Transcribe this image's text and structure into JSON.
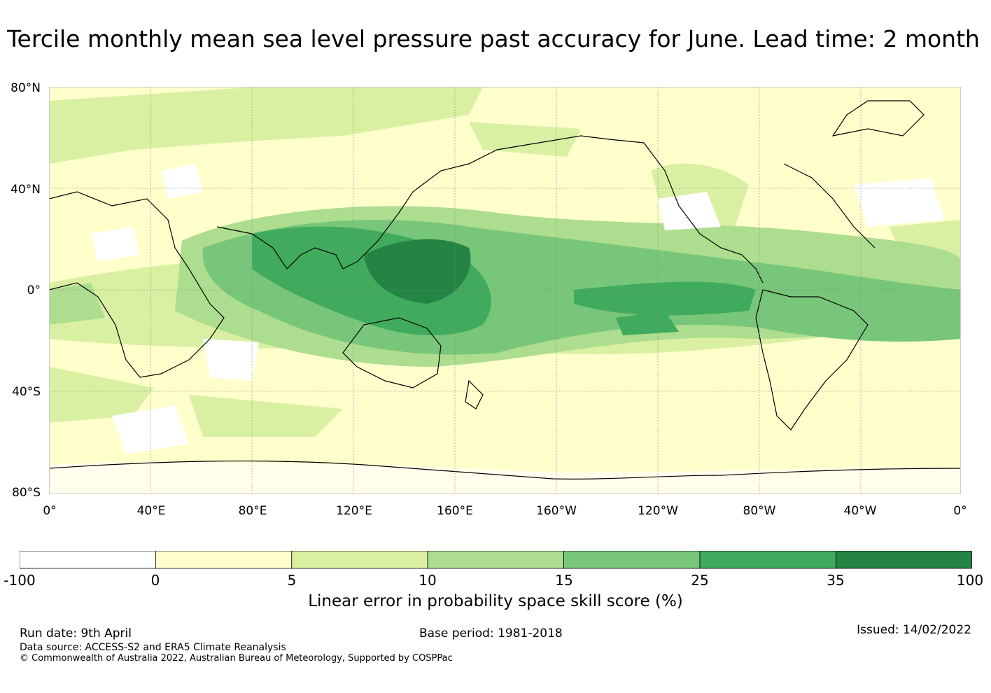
{
  "title": "Tercile monthly mean sea level pressure past accuracy for June. Lead time: 2 month",
  "map": {
    "lat_labels": [
      "80°N",
      "40°N",
      "0°",
      "40°S",
      "80°S"
    ],
    "lon_labels": [
      "0°",
      "40°E",
      "80°E",
      "120°E",
      "160°E",
      "160°W",
      "120°W",
      "80°W",
      "40°W",
      "0°"
    ]
  },
  "colorbar": {
    "label": "Linear error in probability space skill score (%)",
    "ticks": [
      "-100",
      "0",
      "5",
      "10",
      "15",
      "25",
      "35",
      "100"
    ],
    "colors": [
      "#ffffff",
      "#ffffcc",
      "#d9f0a3",
      "#addd8e",
      "#78c679",
      "#41ab5d",
      "#238443"
    ]
  },
  "footer": {
    "run_date": "Run date: 9th April",
    "base_period": "Base period: 1981-2018",
    "issued": "Issued: 14/02/2022",
    "data_source": "Data source: ACCESS-S2 and ERA5 Climate Reanalysis",
    "copyright": "© Commonwealth of Australia 2022, Australian Bureau of Meteorology, Supported by COSPPac"
  }
}
